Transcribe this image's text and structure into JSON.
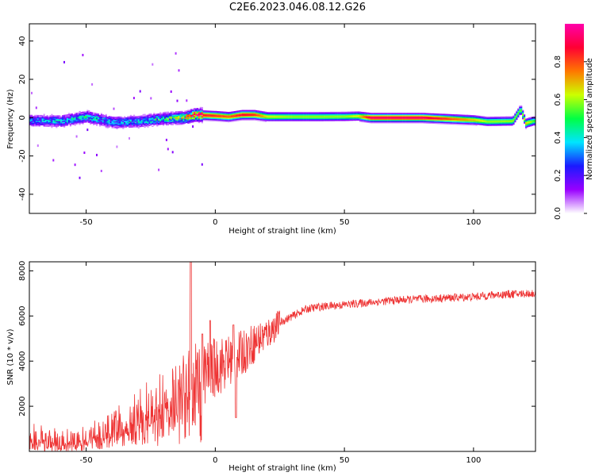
{
  "title": "C2E6.2023.046.08.12.G26",
  "chart_data": [
    {
      "type": "heatmap",
      "xlabel": "Height of straight line (km)",
      "ylabel": "Frequency (Hz)",
      "xlim": [
        -72,
        124
      ],
      "ylim": [
        -50,
        49
      ],
      "xticks": [
        -50,
        0,
        50,
        100
      ],
      "yticks": [
        40,
        20,
        0,
        -20,
        -40
      ],
      "colorbar": {
        "label": "Normalized spectral amplitude",
        "range": [
          0,
          1
        ],
        "ticks": [
          "0.0",
          "0.2",
          "0.4",
          "0.6",
          "0.8"
        ],
        "tick_values": [
          0,
          0.2,
          0.4,
          0.6,
          0.8
        ],
        "colormap": [
          "#ffffff",
          "#9900ff",
          "#1a1aff",
          "#00e5ff",
          "#00ff44",
          "#ccff00",
          "#ff7700",
          "#ff0033",
          "#ff00aa"
        ]
      },
      "ridge": {
        "description_values": "dominant frequency vs height",
        "x": [
          -72,
          -60,
          -50,
          -40,
          -30,
          -20,
          -12,
          -8,
          0,
          5,
          10,
          15,
          20,
          30,
          40,
          50,
          55,
          60,
          80,
          100,
          105,
          115,
          118,
          120,
          121,
          123
        ],
        "y": [
          -1.5,
          -1.8,
          0.5,
          -2.5,
          -2.0,
          -0.5,
          0,
          1.5,
          1.0,
          0.5,
          1.5,
          1.5,
          0.5,
          0.5,
          0.5,
          0.6,
          0.8,
          0,
          0,
          -1.2,
          -2,
          -1.8,
          4.5,
          -3,
          -2.5,
          -1.8
        ],
        "peak_amplitude": [
          0.3,
          0.35,
          0.4,
          0.35,
          0.35,
          0.45,
          0.6,
          0.9,
          0.85,
          0.8,
          0.9,
          0.85,
          0.65,
          0.6,
          0.6,
          0.6,
          0.65,
          0.95,
          0.95,
          0.7,
          0.6,
          0.6,
          0.55,
          0.7,
          0.65,
          0.55
        ]
      }
    },
    {
      "type": "line",
      "xlabel": "Height of straight line (km)",
      "ylabel": "SNR (10 * v/v)",
      "xlim": [
        -72,
        124
      ],
      "ylim": [
        0,
        8400
      ],
      "xticks": [
        -50,
        0,
        50,
        100
      ],
      "yticks": [
        2000,
        4000,
        6000,
        8000
      ],
      "color": "#ee3333",
      "trend": {
        "x": [
          -72,
          -65,
          -60,
          -55,
          -50,
          -45,
          -40,
          -35,
          -30,
          -25,
          -20,
          -15,
          -10,
          -8,
          -5,
          0,
          5,
          10,
          15,
          20,
          25,
          30,
          35,
          40,
          50,
          60,
          70,
          80,
          90,
          100,
          110,
          124
        ],
        "y": [
          700,
          500,
          450,
          500,
          600,
          800,
          1000,
          1400,
          1700,
          2000,
          2200,
          2500,
          2900,
          3000,
          3400,
          3700,
          4000,
          4300,
          4800,
          5200,
          5700,
          6000,
          6300,
          6400,
          6500,
          6600,
          6700,
          6750,
          6800,
          6850,
          6950,
          7000
        ]
      },
      "peaks": {
        "x": [
          -9.5,
          -5,
          -2,
          7,
          8
        ],
        "y": [
          8400,
          5200,
          5800,
          5600,
          1500
        ]
      }
    }
  ]
}
